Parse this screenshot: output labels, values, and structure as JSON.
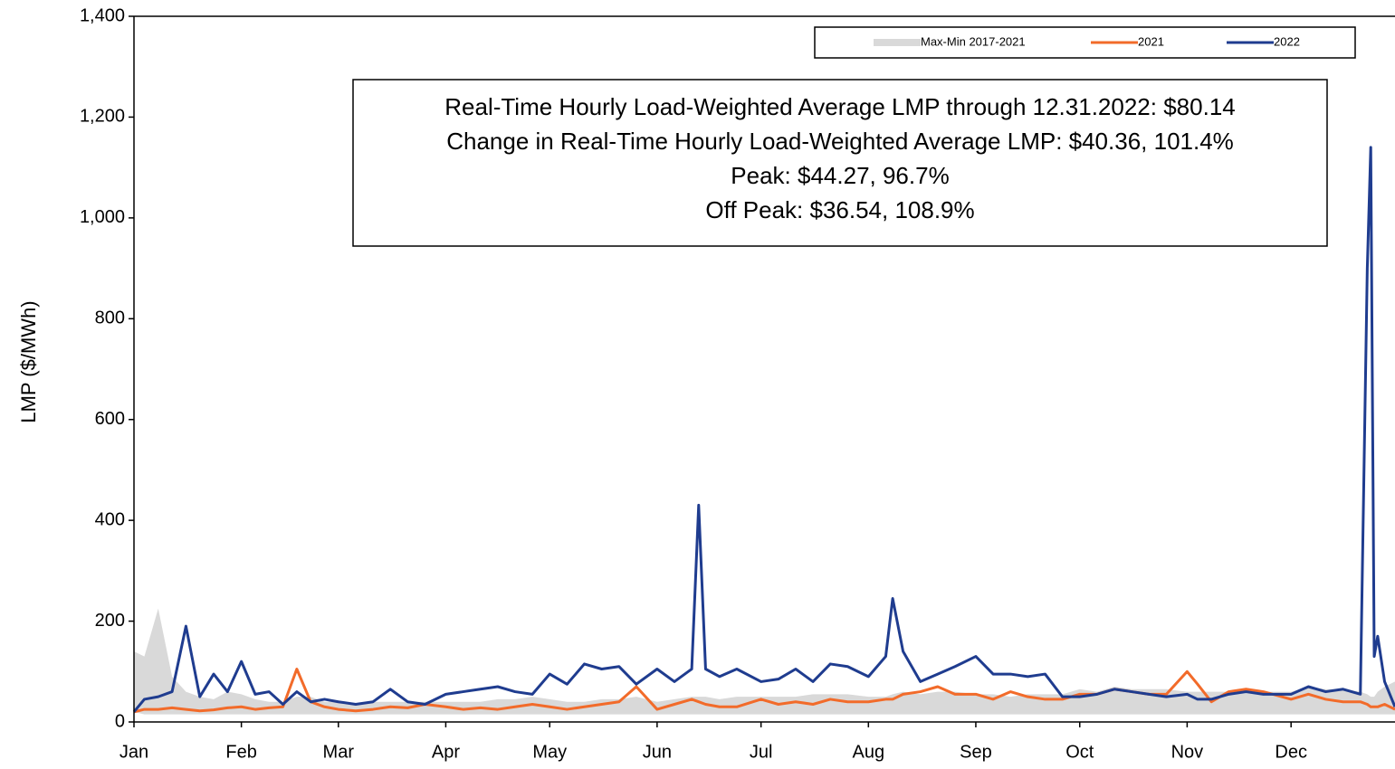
{
  "chart_data": {
    "type": "line",
    "y_label": "LMP ($/MWh)",
    "annotation": [
      "Real-Time Hourly Load-Weighted Average LMP through 12.31.2022: $80.14",
      "Change in Real-Time Hourly Load-Weighted Average LMP: $40.36, 101.4%",
      "Peak: $44.27, 96.7%",
      "Off Peak: $36.54, 108.9%"
    ],
    "legend": "top-right",
    "xlim": [
      1,
      365
    ],
    "xticks": [
      {
        "value": 1,
        "label": "Jan"
      },
      {
        "value": 32,
        "label": "Feb"
      },
      {
        "value": 60,
        "label": "Mar"
      },
      {
        "value": 91,
        "label": "Apr"
      },
      {
        "value": 121,
        "label": "May"
      },
      {
        "value": 152,
        "label": "Jun"
      },
      {
        "value": 182,
        "label": "Jul"
      },
      {
        "value": 213,
        "label": "Aug"
      },
      {
        "value": 244,
        "label": "Sep"
      },
      {
        "value": 274,
        "label": "Oct"
      },
      {
        "value": 305,
        "label": "Nov"
      },
      {
        "value": 335,
        "label": "Dec"
      }
    ],
    "ylim": [
      0,
      1400
    ],
    "yticks": [
      0,
      {
        "value": 200,
        "label": "200"
      },
      400,
      600,
      800,
      {
        "value": 1000,
        "label": "1,000"
      },
      {
        "value": 1200,
        "label": "1,200"
      },
      {
        "value": 1400,
        "label": "1,400"
      }
    ],
    "x": [
      1,
      4,
      8,
      12,
      16,
      20,
      24,
      28,
      32,
      36,
      40,
      44,
      48,
      52,
      56,
      60,
      65,
      70,
      75,
      80,
      85,
      91,
      96,
      101,
      106,
      111,
      116,
      121,
      126,
      131,
      136,
      141,
      146,
      152,
      157,
      162,
      164,
      166,
      170,
      175,
      182,
      187,
      192,
      197,
      202,
      207,
      213,
      218,
      220,
      223,
      228,
      233,
      238,
      244,
      249,
      254,
      259,
      264,
      269,
      274,
      279,
      284,
      289,
      294,
      299,
      305,
      308,
      312,
      317,
      322,
      327,
      335,
      340,
      345,
      350,
      355,
      357,
      358,
      359,
      360,
      362,
      365
    ],
    "band": {
      "name": "Max-Min 2017-2021",
      "color": "#d9d9d9",
      "upper": [
        140,
        130,
        225,
        90,
        60,
        50,
        45,
        60,
        55,
        45,
        40,
        40,
        50,
        50,
        40,
        40,
        35,
        40,
        40,
        40,
        40,
        40,
        40,
        40,
        45,
        45,
        50,
        45,
        40,
        40,
        45,
        45,
        50,
        40,
        45,
        50,
        50,
        50,
        45,
        50,
        50,
        50,
        50,
        55,
        55,
        55,
        50,
        50,
        55,
        60,
        55,
        60,
        60,
        55,
        55,
        50,
        55,
        55,
        55,
        65,
        60,
        70,
        65,
        65,
        65,
        60,
        60,
        60,
        60,
        65,
        60,
        60,
        70,
        65,
        65,
        60,
        55,
        50,
        50,
        60,
        70,
        80
      ],
      "lower": [
        20,
        15,
        15,
        15,
        15,
        15,
        15,
        15,
        15,
        15,
        15,
        15,
        15,
        15,
        15,
        15,
        15,
        15,
        15,
        15,
        15,
        15,
        15,
        15,
        15,
        15,
        15,
        15,
        15,
        15,
        15,
        15,
        15,
        15,
        15,
        15,
        15,
        15,
        15,
        15,
        15,
        15,
        15,
        15,
        15,
        15,
        15,
        15,
        15,
        15,
        15,
        15,
        15,
        15,
        15,
        15,
        15,
        15,
        15,
        15,
        15,
        15,
        15,
        15,
        15,
        15,
        15,
        15,
        15,
        15,
        15,
        15,
        15,
        15,
        15,
        15,
        15,
        15,
        15,
        15,
        15,
        15
      ]
    },
    "series": [
      {
        "name": "2021",
        "color": "#f26b2a",
        "values": [
          20,
          25,
          25,
          28,
          25,
          22,
          24,
          28,
          30,
          25,
          28,
          30,
          105,
          40,
          30,
          25,
          22,
          25,
          30,
          28,
          35,
          30,
          25,
          28,
          25,
          30,
          35,
          30,
          25,
          30,
          35,
          40,
          70,
          25,
          35,
          45,
          40,
          35,
          30,
          30,
          45,
          35,
          40,
          35,
          45,
          40,
          40,
          45,
          45,
          55,
          60,
          70,
          55,
          55,
          45,
          60,
          50,
          45,
          45,
          55,
          55,
          65,
          60,
          55,
          55,
          100,
          75,
          40,
          60,
          65,
          60,
          45,
          55,
          45,
          40,
          40,
          35,
          30,
          30,
          30,
          35,
          25
        ]
      },
      {
        "name": "2022",
        "color": "#1f3c8f",
        "values": [
          20,
          45,
          50,
          60,
          190,
          50,
          95,
          60,
          120,
          55,
          60,
          35,
          60,
          40,
          45,
          40,
          35,
          40,
          65,
          40,
          35,
          55,
          60,
          65,
          70,
          60,
          55,
          95,
          75,
          115,
          105,
          110,
          75,
          105,
          80,
          105,
          430,
          105,
          90,
          105,
          80,
          85,
          105,
          80,
          115,
          110,
          90,
          130,
          245,
          140,
          80,
          95,
          110,
          130,
          95,
          95,
          90,
          95,
          50,
          50,
          55,
          65,
          60,
          55,
          50,
          55,
          45,
          45,
          55,
          60,
          55,
          55,
          70,
          60,
          65,
          55,
          900,
          1140,
          130,
          170,
          80,
          30
        ]
      }
    ]
  }
}
